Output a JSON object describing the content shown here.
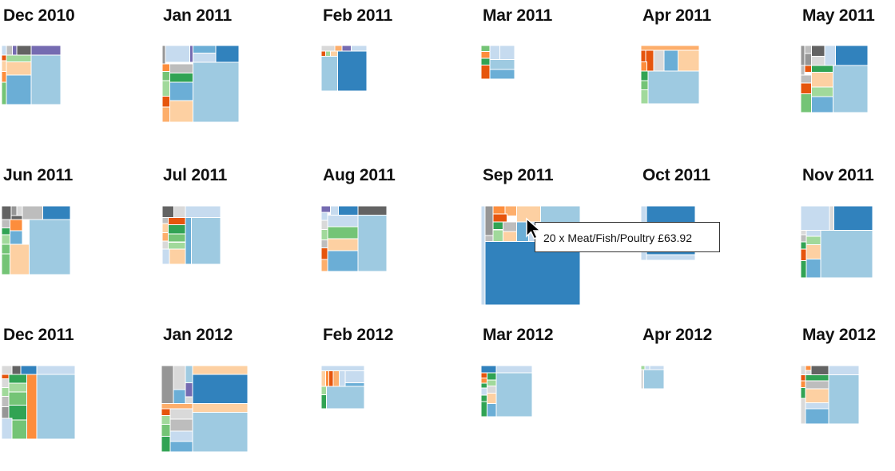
{
  "colors": {
    "c0": "#9ecae1",
    "c1": "#3182bd",
    "c2": "#c6dbef",
    "c3": "#fdd0a2",
    "c4": "#fd8d3c",
    "c5": "#e6550d",
    "c6": "#74c476",
    "c7": "#31a354",
    "c8": "#a1d99b",
    "c9": "#969696",
    "c10": "#636363",
    "c11": "#bdbdbd",
    "c12": "#756bb1",
    "c13": "#6baed6",
    "c14": "#d9d9d9",
    "c15": "#fdae6b"
  },
  "tooltip": {
    "text": "20 x Meat/Fish/Poultry £63.92"
  },
  "chart_data": {
    "type": "treemap",
    "months": [
      {
        "label": "Dec 2010",
        "cells": [
          {
            "c": "c13",
            "r": [
              0,
              0,
              38,
              5
            ]
          },
          {
            "c": "c10",
            "r": [
              76,
              0,
              0,
              0
            ]
          }
        ]
      },
      {
        "label": "Jan 2011"
      },
      {
        "label": "Feb 2011"
      },
      {
        "label": "Mar 2011"
      },
      {
        "label": "Apr 2011"
      },
      {
        "label": "May 2011"
      },
      {
        "label": "Jun 2011"
      },
      {
        "label": "Jul 2011"
      },
      {
        "label": "Aug 2011"
      },
      {
        "label": "Sep 2011"
      },
      {
        "label": "Oct 2011"
      },
      {
        "label": "Nov 2011"
      },
      {
        "label": "Dec 2011"
      },
      {
        "label": "Jan 2012"
      },
      {
        "label": "Feb 2012"
      },
      {
        "label": "Mar 2012"
      },
      {
        "label": "Apr 2012"
      },
      {
        "label": "May 2012"
      }
    ]
  }
}
